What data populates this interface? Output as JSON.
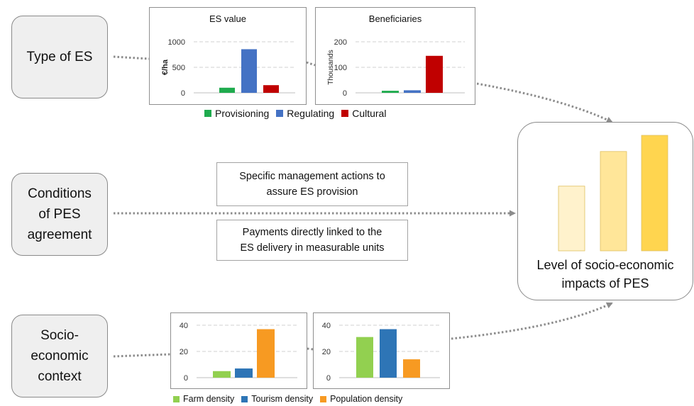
{
  "factors": [
    {
      "id": "type",
      "lines": [
        "Type of ES"
      ]
    },
    {
      "id": "conditions",
      "lines": [
        "Conditions",
        "of PES",
        "agreement"
      ]
    },
    {
      "id": "context",
      "lines": [
        "Socio-",
        "economic",
        "context"
      ]
    }
  ],
  "conditions_boxes": [
    {
      "lines": [
        "Specific management actions to",
        "assure ES provision"
      ]
    },
    {
      "lines": [
        "Payments directly linked to the",
        "ES delivery in measurable units"
      ]
    }
  ],
  "outcome": {
    "lines": [
      "Level of socio-economic",
      "impacts of PES"
    ],
    "levels": [
      0.56,
      0.86,
      1.0
    ]
  },
  "colors": {
    "provisioning": "#1fab4e",
    "regulating": "#4472c4",
    "cultural": "#c00000",
    "farm": "#92d050",
    "tourism": "#2e75b6",
    "population": "#f79a22",
    "outcome_bars": [
      "#fff2cc",
      "#ffe699",
      "#ffd54f"
    ]
  },
  "legends": {
    "es": [
      {
        "label": "Provisioning",
        "color": "#1fab4e"
      },
      {
        "label": "Regulating",
        "color": "#4472c4"
      },
      {
        "label": "Cultural",
        "color": "#c00000"
      }
    ],
    "context": [
      {
        "label": "Farm density",
        "color": "#92d050"
      },
      {
        "label": "Tourism density",
        "color": "#2e75b6"
      },
      {
        "label": "Population density",
        "color": "#f79a22"
      }
    ]
  },
  "chart_data": [
    {
      "type": "bar",
      "title": "ES value",
      "ylabel": "€/ha",
      "categories": [
        "Provisioning",
        "Regulating",
        "Cultural"
      ],
      "values": [
        100,
        855,
        150
      ],
      "ylim": [
        0,
        1000
      ],
      "yticks": [
        0,
        500,
        1000
      ],
      "grid": true
    },
    {
      "type": "bar",
      "title": "Beneficiaries",
      "ylabel": "Thousands",
      "categories": [
        "Provisioning",
        "Regulating",
        "Cultural"
      ],
      "values": [
        8,
        10,
        145
      ],
      "ylim": [
        0,
        200
      ],
      "yticks": [
        0,
        100,
        200
      ],
      "grid": true
    },
    {
      "type": "bar",
      "title": "",
      "ylabel": "",
      "categories": [
        "Farm density",
        "Tourism density",
        "Population density"
      ],
      "values": [
        5,
        7,
        37
      ],
      "ylim": [
        0,
        40
      ],
      "yticks": [
        0,
        20,
        40
      ],
      "grid": true
    },
    {
      "type": "bar",
      "title": "",
      "ylabel": "",
      "categories": [
        "Farm density",
        "Tourism density",
        "Population density"
      ],
      "values": [
        31,
        37,
        14
      ],
      "ylim": [
        0,
        40
      ],
      "yticks": [
        0,
        20,
        40
      ],
      "grid": true
    }
  ]
}
